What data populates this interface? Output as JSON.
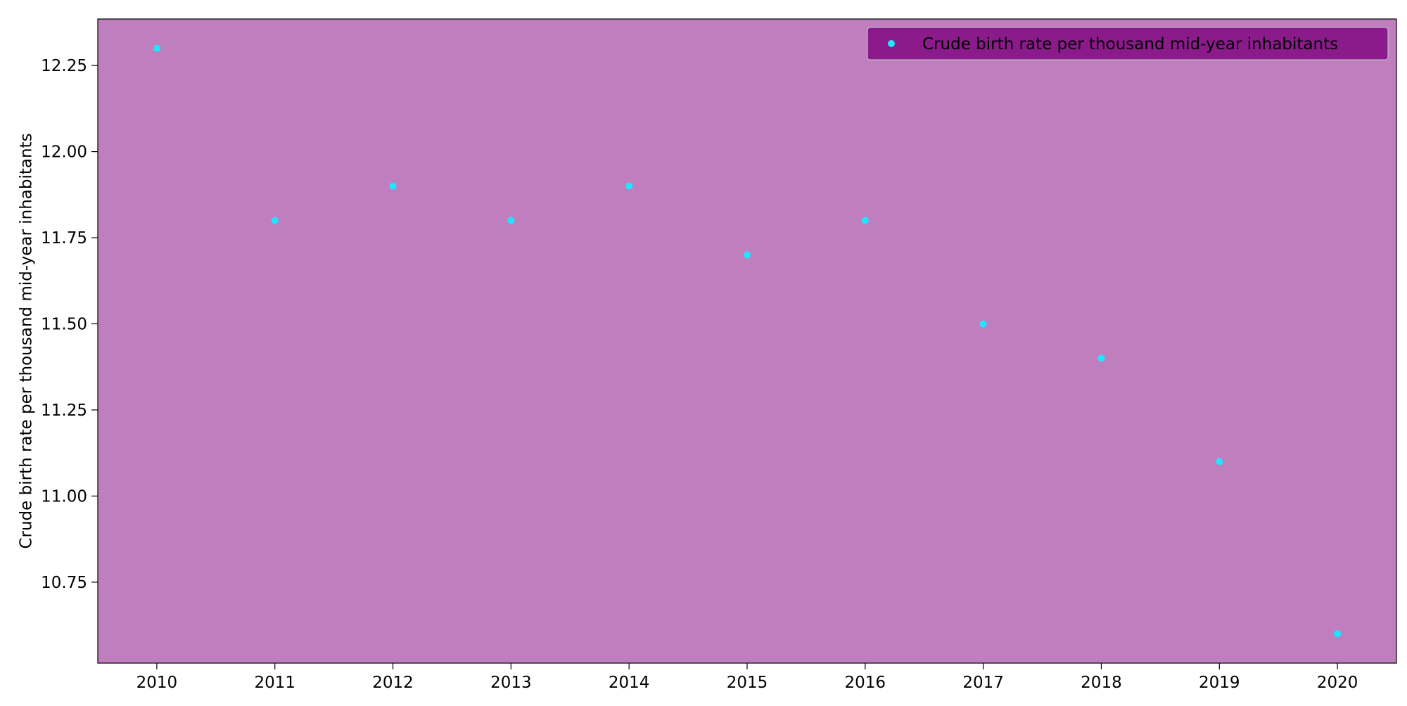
{
  "colors": {
    "page_background": "#ffffff",
    "plot_background": "#bf7fbf",
    "marker": "#1fe5ff",
    "legend_background": "#8b1a8b",
    "legend_border": "#cccccc",
    "axis": "#000000"
  },
  "chart_data": {
    "type": "scatter",
    "title": "",
    "xlabel": "",
    "ylabel": "Crude birth rate per thousand mid-year inhabitants",
    "x": [
      2010,
      2011,
      2012,
      2013,
      2014,
      2015,
      2016,
      2017,
      2018,
      2019,
      2020
    ],
    "series": [
      {
        "name": "Crude birth rate per thousand mid-year inhabitants",
        "values": [
          12.3,
          11.8,
          11.9,
          11.8,
          11.9,
          11.7,
          11.8,
          11.5,
          11.4,
          11.1,
          10.6
        ]
      }
    ],
    "xlim": [
      2009.5,
      2020.5
    ],
    "ylim": [
      10.515,
      12.385
    ],
    "x_ticks": [
      "2010",
      "2011",
      "2012",
      "2013",
      "2014",
      "2015",
      "2016",
      "2017",
      "2018",
      "2019",
      "2020"
    ],
    "y_ticks": [
      "10.75",
      "11.00",
      "11.25",
      "11.50",
      "11.75",
      "12.00",
      "12.25"
    ],
    "y_tick_values": [
      10.75,
      11.0,
      11.25,
      11.5,
      11.75,
      12.0,
      12.25
    ],
    "grid": false,
    "legend_position": "top-right"
  }
}
